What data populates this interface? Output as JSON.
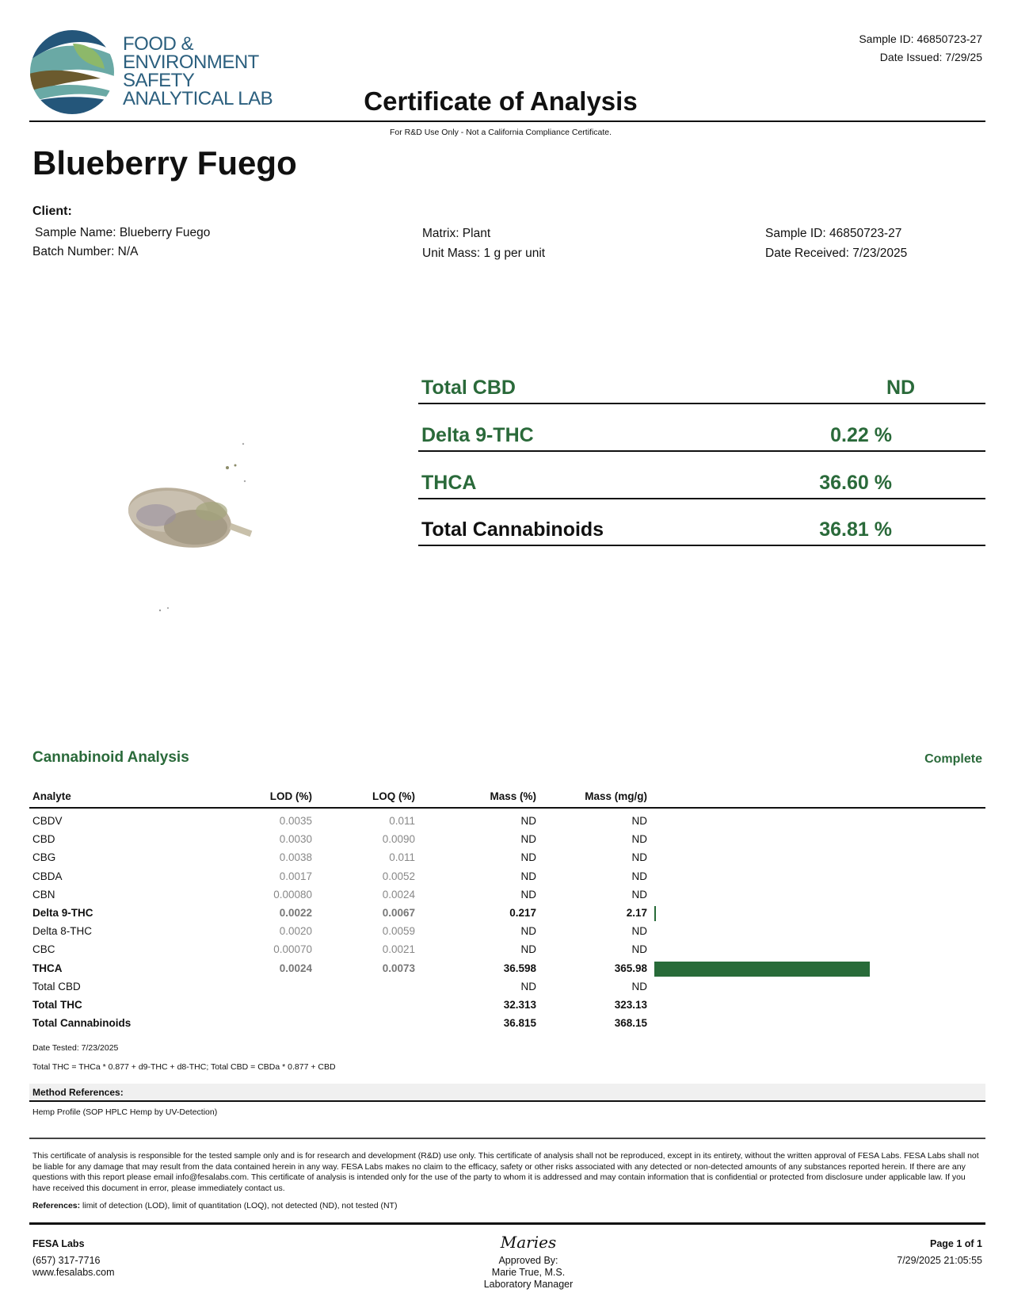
{
  "logo": {
    "lines": [
      "FOOD &",
      "ENVIRONMENT",
      "SAFETY",
      "ANALYTICAL LAB"
    ]
  },
  "header": {
    "sample_id": "Sample ID: 46850723-27",
    "date_issued": "Date Issued: 7/29/25",
    "title": "Certificate of Analysis",
    "notice": "For R&D Use Only - Not a California Compliance Certificate."
  },
  "product_name": "Blueberry Fuego",
  "client": {
    "label": "Client:",
    "sample_name": "Sample Name: Blueberry Fuego",
    "batch_number": "Batch Number: N/A",
    "matrix": "Matrix: Plant",
    "unit_mass": "Unit Mass: 1 g per unit",
    "sample_id": "Sample ID: 46850723-27",
    "date_received": "Date Received: 7/23/2025"
  },
  "summary": [
    {
      "label": "Total CBD",
      "value": "ND",
      "color": "#2a6a3a"
    },
    {
      "label": "Delta 9-THC",
      "value": "0.22 %",
      "color": "#2a6a3a"
    },
    {
      "label": "THCA",
      "value": "36.60 %",
      "color": "#2a6a3a"
    },
    {
      "label": "Total Cannabinoids",
      "value": "36.81 %",
      "color": "#111111"
    }
  ],
  "analysis": {
    "title": "Cannabinoid Analysis",
    "status": "Complete",
    "accent": "#2a6a3a",
    "bar_color": "#286b39",
    "columns": [
      "Analyte",
      "LOD (%)",
      "LOQ (%)",
      "Mass (%)",
      "Mass (mg/g)"
    ],
    "rows": [
      {
        "analyte": "CBDV",
        "lod": "0.0035",
        "loq": "0.011",
        "mass_pct": "ND",
        "mass_mg": "ND",
        "bold": false,
        "bar": 0
      },
      {
        "analyte": "CBD",
        "lod": "0.0030",
        "loq": "0.0090",
        "mass_pct": "ND",
        "mass_mg": "ND",
        "bold": false,
        "bar": 0
      },
      {
        "analyte": "CBG",
        "lod": "0.0038",
        "loq": "0.011",
        "mass_pct": "ND",
        "mass_mg": "ND",
        "bold": false,
        "bar": 0
      },
      {
        "analyte": "CBDA",
        "lod": "0.0017",
        "loq": "0.0052",
        "mass_pct": "ND",
        "mass_mg": "ND",
        "bold": false,
        "bar": 0
      },
      {
        "analyte": "CBN",
        "lod": "0.00080",
        "loq": "0.0024",
        "mass_pct": "ND",
        "mass_mg": "ND",
        "bold": false,
        "bar": 0
      },
      {
        "analyte": "Delta 9-THC",
        "lod": "0.0022",
        "loq": "0.0067",
        "mass_pct": "0.217",
        "mass_mg": "2.17",
        "bold": true,
        "bar": 2.17
      },
      {
        "analyte": "Delta 8-THC",
        "lod": "0.0020",
        "loq": "0.0059",
        "mass_pct": "ND",
        "mass_mg": "ND",
        "bold": false,
        "bar": 0
      },
      {
        "analyte": "CBC",
        "lod": "0.00070",
        "loq": "0.0021",
        "mass_pct": "ND",
        "mass_mg": "ND",
        "bold": false,
        "bar": 0
      },
      {
        "analyte": "THCA",
        "lod": "0.0024",
        "loq": "0.0073",
        "mass_pct": "36.598",
        "mass_mg": "365.98",
        "bold": true,
        "bar": 365.98
      },
      {
        "analyte": "Total CBD",
        "lod": "",
        "loq": "",
        "mass_pct": "ND",
        "mass_mg": "ND",
        "bold": false,
        "bar": 0
      },
      {
        "analyte": "Total THC",
        "lod": "",
        "loq": "",
        "mass_pct": "32.313",
        "mass_mg": "323.13",
        "bold": true,
        "bar": 0
      },
      {
        "analyte": "Total Cannabinoids",
        "lod": "",
        "loq": "",
        "mass_pct": "36.815",
        "mass_mg": "368.15",
        "bold": true,
        "bar": 0
      }
    ],
    "date_tested": "Date Tested: 7/23/2025",
    "formula": "Total THC = THCa * 0.877 + d9-THC + d8-THC; Total CBD = CBDa * 0.877 + CBD"
  },
  "methods": {
    "label": "Method References:",
    "items": [
      "Hemp Profile (SOP HPLC Hemp by UV-Detection)"
    ]
  },
  "disclaimer": "This certificate of analysis is responsible for the tested sample only and is for research and development (R&D) use only. This certificate of analysis shall not be reproduced, except in its entirety, without the written approval of FESA Labs. FESA Labs shall not be liable for any damage that may result from the data contained herein in any way. FESA Labs makes no claim to the efficacy, safety or other risks associated with any detected or non-detected amounts of any substances reported herein. If there are any questions with this report please email info@fesalabs.com. This certificate of analysis is intended only for the use of the party to whom it is addressed and may contain information that is confidential or protected from disclosure under applicable law. If you have received this document in error, please immediately contact us.",
  "references": {
    "label": "References:",
    "text": " limit of detection (LOD), limit of quantitation (LOQ), not detected (ND), not tested (NT)"
  },
  "footer": {
    "company": "FESA Labs",
    "phone": "(657) 317-7716",
    "website": "www.fesalabs.com",
    "signature": "Maries",
    "approved_by": "Approved By:",
    "approver": "Marie True, M.S.",
    "approver_title": "Laboratory Manager",
    "page": "Page 1 of 1",
    "timestamp": "7/29/2025 21:05:55"
  }
}
